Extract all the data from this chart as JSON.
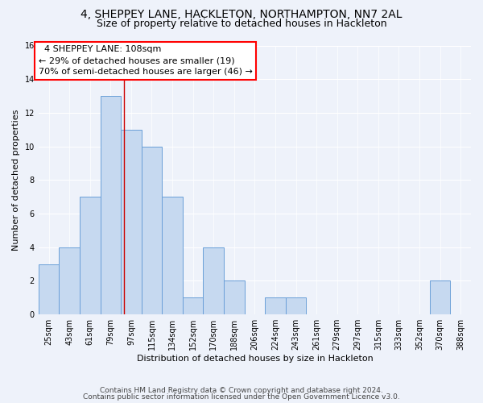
{
  "title": "4, SHEPPEY LANE, HACKLETON, NORTHAMPTON, NN7 2AL",
  "subtitle": "Size of property relative to detached houses in Hackleton",
  "xlabel": "Distribution of detached houses by size in Hackleton",
  "ylabel": "Number of detached properties",
  "categories": [
    "25sqm",
    "43sqm",
    "61sqm",
    "79sqm",
    "97sqm",
    "115sqm",
    "134sqm",
    "152sqm",
    "170sqm",
    "188sqm",
    "206sqm",
    "224sqm",
    "243sqm",
    "261sqm",
    "279sqm",
    "297sqm",
    "315sqm",
    "333sqm",
    "352sqm",
    "370sqm",
    "388sqm"
  ],
  "values": [
    3,
    4,
    7,
    13,
    11,
    10,
    7,
    1,
    4,
    2,
    0,
    1,
    1,
    0,
    0,
    0,
    0,
    0,
    0,
    2,
    0
  ],
  "bar_color": "#c6d9f0",
  "bar_edge_color": "#6a9fd8",
  "property_label": "4 SHEPPEY LANE: 108sqm",
  "annotation_line1": "← 29% of detached houses are smaller (19)",
  "annotation_line2": "70% of semi-detached houses are larger (46) →",
  "vline_color": "#cc0000",
  "vline_position": 3.67,
  "ylim": [
    0,
    16
  ],
  "yticks": [
    0,
    2,
    4,
    6,
    8,
    10,
    12,
    14,
    16
  ],
  "footnote1": "Contains HM Land Registry data © Crown copyright and database right 2024.",
  "footnote2": "Contains public sector information licensed under the Open Government Licence v3.0.",
  "bg_color": "#eef2fa",
  "plot_bg_color": "#eef2fa",
  "title_fontsize": 10,
  "subtitle_fontsize": 9,
  "xlabel_fontsize": 8,
  "ylabel_fontsize": 8,
  "annot_fontsize": 8,
  "tick_fontsize": 7,
  "footnote_fontsize": 6.5
}
